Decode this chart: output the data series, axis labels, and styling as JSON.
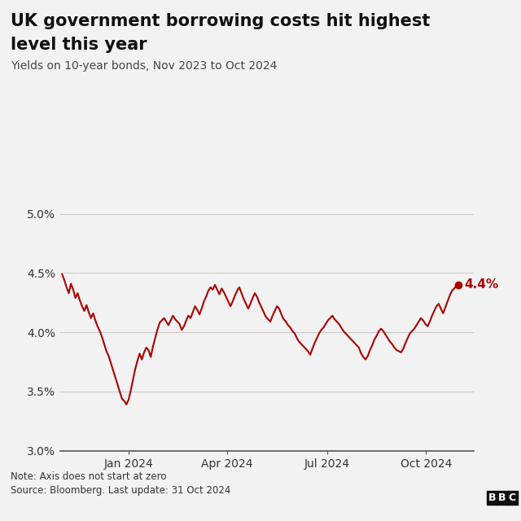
{
  "title_line1": "UK government borrowing costs hit highest",
  "title_line2": "level this year",
  "subtitle": "Yields on 10-year bonds, Nov 2023 to Oct 2024",
  "note": "Note: Axis does not start at zero",
  "source": "Source: Bloomberg. Last update: 31 Oct 2024",
  "bbc_logo": "BBC",
  "line_color": "#aa0000",
  "background_color": "#f2f2f2",
  "ylim": [
    3.0,
    5.2
  ],
  "yticks": [
    3.0,
    3.5,
    4.0,
    4.5,
    5.0
  ],
  "ytick_labels": [
    "3.0%",
    "3.5%",
    "4.0%",
    "4.5%",
    "5.0%"
  ],
  "annotation_value": "4.4%",
  "annotation_color": "#aa0000",
  "x_tick_labels": [
    "Jan 2024",
    "Apr 2024",
    "Jul 2024",
    "Oct 2024"
  ],
  "data": [
    4.49,
    4.44,
    4.38,
    4.33,
    4.41,
    4.36,
    4.29,
    4.33,
    4.27,
    4.22,
    4.18,
    4.23,
    4.17,
    4.12,
    4.16,
    4.1,
    4.05,
    4.01,
    3.96,
    3.9,
    3.84,
    3.8,
    3.74,
    3.68,
    3.62,
    3.56,
    3.5,
    3.44,
    3.42,
    3.39,
    3.43,
    3.51,
    3.6,
    3.69,
    3.76,
    3.82,
    3.77,
    3.83,
    3.87,
    3.85,
    3.79,
    3.88,
    3.95,
    4.02,
    4.08,
    4.1,
    4.12,
    4.09,
    4.06,
    4.1,
    4.14,
    4.11,
    4.09,
    4.07,
    4.02,
    4.05,
    4.1,
    4.14,
    4.12,
    4.17,
    4.22,
    4.19,
    4.15,
    4.2,
    4.26,
    4.3,
    4.35,
    4.38,
    4.36,
    4.4,
    4.36,
    4.32,
    4.37,
    4.34,
    4.3,
    4.26,
    4.22,
    4.26,
    4.31,
    4.35,
    4.38,
    4.33,
    4.28,
    4.24,
    4.2,
    4.24,
    4.29,
    4.33,
    4.3,
    4.25,
    4.21,
    4.17,
    4.13,
    4.11,
    4.09,
    4.14,
    4.18,
    4.22,
    4.2,
    4.15,
    4.11,
    4.09,
    4.06,
    4.04,
    4.01,
    3.99,
    3.95,
    3.92,
    3.9,
    3.88,
    3.86,
    3.84,
    3.81,
    3.86,
    3.91,
    3.95,
    3.99,
    4.02,
    4.04,
    4.07,
    4.1,
    4.12,
    4.14,
    4.11,
    4.09,
    4.07,
    4.04,
    4.01,
    3.99,
    3.97,
    3.95,
    3.93,
    3.91,
    3.89,
    3.87,
    3.82,
    3.79,
    3.77,
    3.8,
    3.85,
    3.89,
    3.94,
    3.97,
    4.01,
    4.03,
    4.01,
    3.98,
    3.95,
    3.92,
    3.9,
    3.87,
    3.85,
    3.84,
    3.83,
    3.86,
    3.91,
    3.95,
    3.99,
    4.01,
    4.03,
    4.06,
    4.09,
    4.12,
    4.1,
    4.07,
    4.05,
    4.09,
    4.14,
    4.18,
    4.22,
    4.24,
    4.2,
    4.16,
    4.21,
    4.26,
    4.31,
    4.35,
    4.37,
    4.39,
    4.4
  ]
}
